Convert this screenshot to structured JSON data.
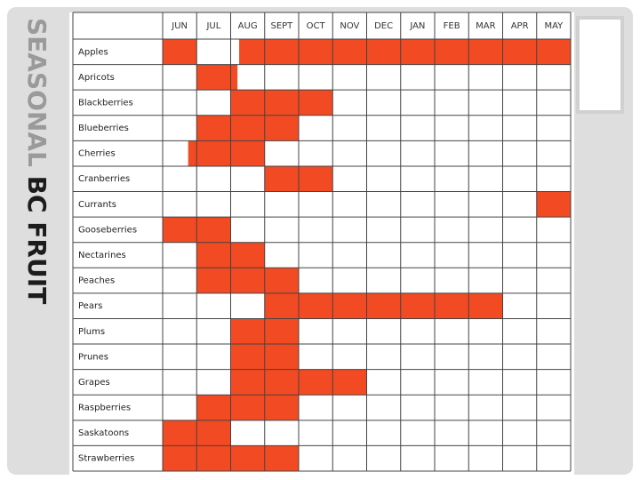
{
  "title": {
    "light": "SEASONAL",
    "dark": "BC FRUIT"
  },
  "table": {
    "fill_color": "#f24a22",
    "months": [
      "JUN",
      "JUL",
      "AUG",
      "SEPT",
      "OCT",
      "NOV",
      "DEC",
      "JAN",
      "FEB",
      "MAR",
      "APR",
      "MAY"
    ],
    "rows": [
      {
        "name": "Apples",
        "months": [
          1,
          0,
          0.75,
          1,
          1,
          1,
          1,
          1,
          1,
          1,
          1,
          1
        ]
      },
      {
        "name": "Apricots",
        "months": [
          0,
          1,
          0.2,
          0,
          0,
          0,
          0,
          0,
          0,
          0,
          0,
          0
        ]
      },
      {
        "name": "Blackberries",
        "months": [
          0,
          0,
          1,
          1,
          1,
          0,
          0,
          0,
          0,
          0,
          0,
          0
        ]
      },
      {
        "name": "Blueberries",
        "months": [
          0,
          1,
          1,
          1,
          0,
          0,
          0,
          0,
          0,
          0,
          0,
          0
        ]
      },
      {
        "name": "Cherries",
        "months": [
          0.25,
          1,
          1,
          0,
          0,
          0,
          0,
          0,
          0,
          0,
          0,
          0
        ]
      },
      {
        "name": "Cranberries",
        "months": [
          0,
          0,
          0,
          1,
          1,
          0,
          0,
          0,
          0,
          0,
          0,
          0
        ]
      },
      {
        "name": "Currants",
        "months": [
          0,
          0,
          0,
          0,
          0,
          0,
          0,
          0,
          0,
          0,
          0,
          1
        ]
      },
      {
        "name": "Gooseberries",
        "months": [
          1,
          1,
          0,
          0,
          0,
          0,
          0,
          0,
          0,
          0,
          0,
          0
        ]
      },
      {
        "name": "Nectarines",
        "months": [
          0,
          1,
          1,
          0,
          0,
          0,
          0,
          0,
          0,
          0,
          0,
          0
        ]
      },
      {
        "name": "Peaches",
        "months": [
          0,
          1,
          1,
          1,
          0,
          0,
          0,
          0,
          0,
          0,
          0,
          0
        ]
      },
      {
        "name": "Pears",
        "months": [
          0,
          0,
          0,
          1,
          1,
          1,
          1,
          1,
          1,
          1,
          0,
          0
        ]
      },
      {
        "name": "Plums",
        "months": [
          0,
          0,
          1,
          1,
          0,
          0,
          0,
          0,
          0,
          0,
          0,
          0
        ]
      },
      {
        "name": "Prunes",
        "months": [
          0,
          0,
          1,
          1,
          0,
          0,
          0,
          0,
          0,
          0,
          0,
          0
        ]
      },
      {
        "name": "Grapes",
        "months": [
          0,
          0,
          1,
          1,
          1,
          1,
          0,
          0,
          0,
          0,
          0,
          0
        ]
      },
      {
        "name": "Raspberries",
        "months": [
          0,
          1,
          1,
          1,
          0,
          0,
          0,
          0,
          0,
          0,
          0,
          0
        ]
      },
      {
        "name": "Saskatoons",
        "months": [
          1,
          1,
          0,
          0,
          0,
          0,
          0,
          0,
          0,
          0,
          0,
          0
        ]
      },
      {
        "name": "Strawberries",
        "months": [
          1,
          1,
          1,
          1,
          0,
          0,
          0,
          0,
          0,
          0,
          0,
          0
        ]
      }
    ]
  }
}
